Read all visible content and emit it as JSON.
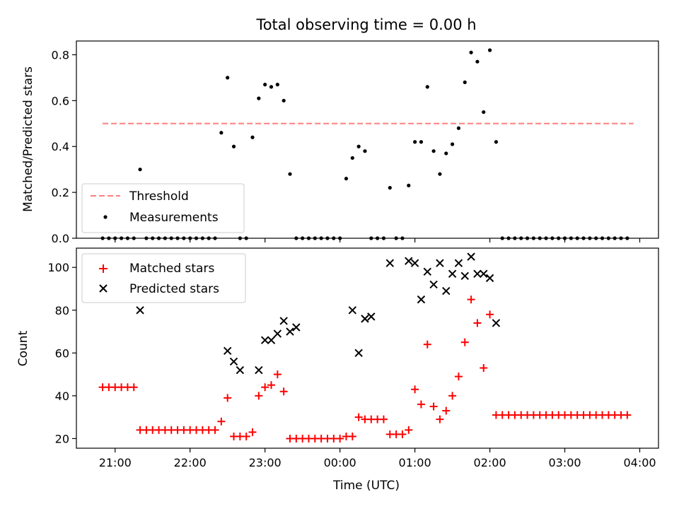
{
  "title": "Total observing time = 0.00 h",
  "chart_data": [
    {
      "type": "scatter",
      "ylabel": "Matched/Predicted stars",
      "xlabel": "",
      "ylim": [
        0,
        0.86
      ],
      "yticks": [
        "0.0",
        "0.2",
        "0.4",
        "0.6",
        "0.8"
      ],
      "ytick_values": [
        0,
        0.2,
        0.4,
        0.6,
        0.8
      ],
      "legend": {
        "placement": "lower-left",
        "entries": [
          "Threshold",
          "Measurements"
        ]
      },
      "threshold": {
        "name": "Threshold",
        "value": 0.5,
        "x_start": "20:50",
        "x_end": "03:55",
        "color": "#ff7f7f"
      },
      "measurements": {
        "name": "Measurements",
        "color": "#000000",
        "x": [
          "20:50",
          "20:55",
          "21:00",
          "21:05",
          "21:10",
          "21:15",
          "21:20",
          "21:25",
          "21:30",
          "21:35",
          "21:40",
          "21:45",
          "21:50",
          "21:55",
          "22:00",
          "22:05",
          "22:10",
          "22:15",
          "22:20",
          "22:25",
          "22:30",
          "22:35",
          "22:40",
          "22:45",
          "22:50",
          "22:55",
          "23:00",
          "23:05",
          "23:10",
          "23:15",
          "23:20",
          "23:25",
          "23:30",
          "23:35",
          "23:40",
          "23:45",
          "23:50",
          "23:55",
          "00:00",
          "00:05",
          "00:10",
          "00:15",
          "00:20",
          "00:25",
          "00:30",
          "00:35",
          "00:40",
          "00:45",
          "00:50",
          "00:55",
          "01:00",
          "01:05",
          "01:10",
          "01:15",
          "01:20",
          "01:25",
          "01:30",
          "01:35",
          "01:40",
          "01:45",
          "01:50",
          "01:55",
          "02:00",
          "02:05",
          "02:10",
          "02:15",
          "02:20",
          "02:25",
          "02:30",
          "02:35",
          "02:40",
          "02:45",
          "02:50",
          "02:55",
          "03:00",
          "03:05",
          "03:10",
          "03:15",
          "03:20",
          "03:25",
          "03:30",
          "03:35",
          "03:40",
          "03:45",
          "03:50"
        ],
        "y": [
          0,
          0,
          0,
          0,
          0,
          0,
          0.3,
          0,
          0,
          0,
          0,
          0,
          0,
          0,
          0,
          0,
          0,
          0,
          0,
          0.46,
          0.7,
          0.4,
          0,
          0,
          0.44,
          0.61,
          0.67,
          0.66,
          0.67,
          0.6,
          0.28,
          0,
          0,
          0,
          0,
          0,
          0,
          0,
          0,
          0.26,
          0.35,
          0.4,
          0.38,
          0,
          0,
          0,
          0.22,
          0,
          0,
          0.23,
          0.42,
          0.42,
          0.66,
          0.38,
          0.28,
          0.37,
          0.41,
          0.48,
          0.68,
          0.81,
          0.77,
          0.55,
          0.82,
          0.42,
          0,
          0,
          0,
          0,
          0,
          0,
          0,
          0,
          0,
          0,
          0,
          0,
          0,
          0,
          0,
          0,
          0,
          0,
          0,
          0,
          0
        ]
      }
    },
    {
      "type": "scatter",
      "ylabel": "Count",
      "xlabel": "Time (UTC)",
      "ylim": [
        15.5,
        109
      ],
      "yticks": [
        "20",
        "40",
        "60",
        "80",
        "100"
      ],
      "ytick_values": [
        20,
        40,
        60,
        80,
        100
      ],
      "xticks": [
        "21:00",
        "22:00",
        "23:00",
        "00:00",
        "01:00",
        "02:00",
        "03:00",
        "04:00"
      ],
      "legend": {
        "placement": "upper-left",
        "entries": [
          "Matched stars",
          "Predicted stars"
        ]
      },
      "matched": {
        "name": "Matched stars",
        "color": "#ff0000",
        "x": [
          "20:50",
          "20:55",
          "21:00",
          "21:05",
          "21:10",
          "21:15",
          "21:20",
          "21:25",
          "21:30",
          "21:35",
          "21:40",
          "21:45",
          "21:50",
          "21:55",
          "22:00",
          "22:05",
          "22:10",
          "22:15",
          "22:20",
          "22:25",
          "22:30",
          "22:35",
          "22:40",
          "22:45",
          "22:50",
          "22:55",
          "23:00",
          "23:05",
          "23:10",
          "23:15",
          "23:20",
          "23:25",
          "23:30",
          "23:35",
          "23:40",
          "23:45",
          "23:50",
          "23:55",
          "00:00",
          "00:05",
          "00:10",
          "00:15",
          "00:20",
          "00:25",
          "00:30",
          "00:35",
          "00:40",
          "00:45",
          "00:50",
          "00:55",
          "01:00",
          "01:05",
          "01:10",
          "01:15",
          "01:20",
          "01:25",
          "01:30",
          "01:35",
          "01:40",
          "01:45",
          "01:50",
          "01:55",
          "02:00",
          "02:05",
          "02:10",
          "02:15",
          "02:20",
          "02:25",
          "02:30",
          "02:35",
          "02:40",
          "02:45",
          "02:50",
          "02:55",
          "03:00",
          "03:05",
          "03:10",
          "03:15",
          "03:20",
          "03:25",
          "03:30",
          "03:35",
          "03:40",
          "03:45",
          "03:50"
        ],
        "y": [
          44,
          44,
          44,
          44,
          44,
          44,
          24,
          24,
          24,
          24,
          24,
          24,
          24,
          24,
          24,
          24,
          24,
          24,
          24,
          28,
          39,
          21,
          21,
          21,
          23,
          40,
          44,
          45,
          50,
          42,
          20,
          20,
          20,
          20,
          20,
          20,
          20,
          20,
          20,
          21,
          21,
          30,
          29,
          29,
          29,
          29,
          22,
          22,
          22,
          24,
          43,
          36,
          64,
          35,
          29,
          33,
          40,
          49,
          65,
          85,
          74,
          53,
          78,
          31,
          31,
          31,
          31,
          31,
          31,
          31,
          31,
          31,
          31,
          31,
          31,
          31,
          31,
          31,
          31,
          31,
          31,
          31,
          31,
          31,
          31
        ]
      },
      "predicted": {
        "name": "Predicted stars",
        "color": "#000000",
        "x": [
          "21:20",
          "22:30",
          "22:35",
          "22:40",
          "22:55",
          "23:00",
          "23:05",
          "23:10",
          "23:15",
          "23:20",
          "23:25",
          "00:10",
          "00:15",
          "00:20",
          "00:25",
          "00:40",
          "00:55",
          "01:00",
          "01:05",
          "01:10",
          "01:15",
          "01:20",
          "01:25",
          "01:30",
          "01:35",
          "01:40",
          "01:45",
          "01:50",
          "01:55",
          "02:00",
          "02:05"
        ],
        "y": [
          80,
          61,
          56,
          52,
          52,
          66,
          66,
          69,
          75,
          70,
          72,
          80,
          60,
          76,
          77,
          102,
          103,
          102,
          85,
          98,
          92,
          102,
          89,
          97,
          102,
          96,
          105,
          97,
          97,
          95,
          74
        ]
      }
    }
  ]
}
